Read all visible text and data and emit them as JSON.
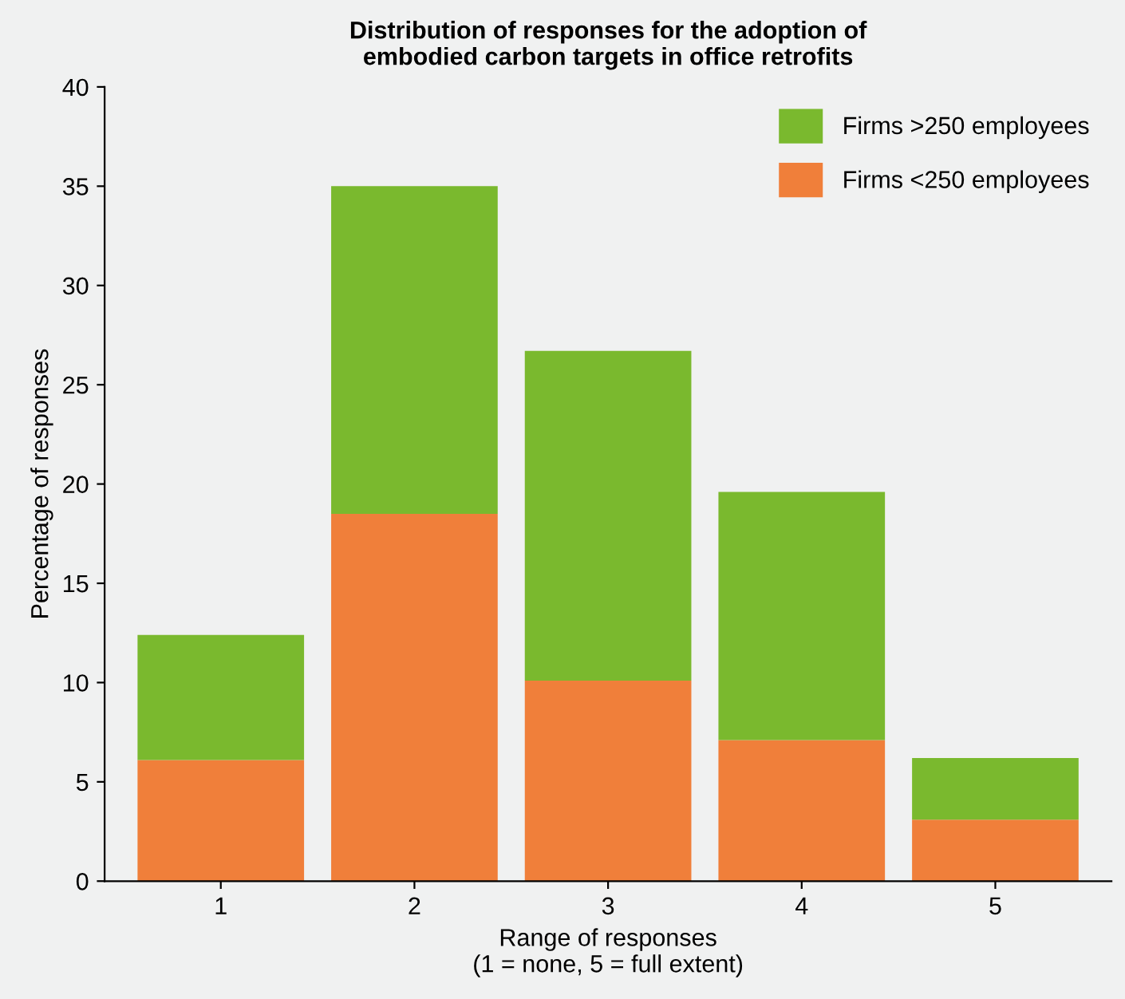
{
  "chart_data": {
    "type": "bar",
    "stacked": true,
    "title": "Distribution of responses for the adoption of\nembodied carbon targets in office retrofits",
    "xlabel": "Range of responses\n(1 = none, 5 = full extent)",
    "ylabel": "Percentage of responses",
    "categories": [
      "1",
      "2",
      "3",
      "4",
      "5"
    ],
    "series": [
      {
        "name": "Firms <250 employees",
        "color": "#f07f3a",
        "values": [
          6.1,
          18.5,
          10.1,
          7.1,
          3.1
        ]
      },
      {
        "name": "Firms >250 employees",
        "color": "#7ab92e",
        "values": [
          6.3,
          16.5,
          16.6,
          12.5,
          3.1
        ]
      }
    ],
    "ylim": [
      0,
      40
    ],
    "yticks": [
      0,
      5,
      10,
      15,
      20,
      25,
      30,
      35,
      40
    ],
    "grid": false,
    "legend": "top right"
  }
}
